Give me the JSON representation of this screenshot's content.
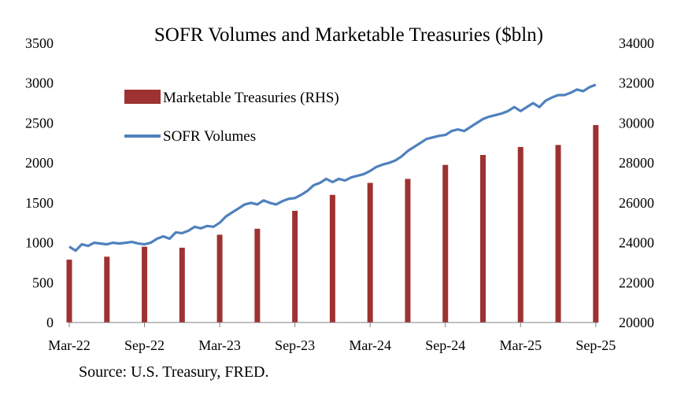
{
  "chart_data": {
    "type": "bar",
    "title": "SOFR Volumes and Marketable Treasuries ($bln)",
    "source": "Source: U.S. Treasury, FRED.",
    "x_tick_labels": [
      "Mar-22",
      "Sep-22",
      "Mar-23",
      "Sep-23",
      "Mar-24",
      "Sep-24",
      "Mar-25",
      "Sep-25"
    ],
    "x_tick_months": [
      0,
      6,
      12,
      18,
      24,
      30,
      36,
      42
    ],
    "xlim_months": [
      0,
      42.2
    ],
    "left_axis": {
      "ylim": [
        0,
        3500
      ],
      "ticks": [
        0,
        500,
        1000,
        1500,
        2000,
        2500,
        3000,
        3500
      ]
    },
    "right_axis": {
      "ylim": [
        20000,
        34000
      ],
      "ticks": [
        20000,
        22000,
        24000,
        26000,
        28000,
        30000,
        32000,
        34000
      ]
    },
    "legend": {
      "position": "top-left",
      "items": [
        {
          "name": "Marketable Treasuries (RHS)",
          "color": "#9E3232",
          "kind": "bar"
        },
        {
          "name": "SOFR Volumes",
          "color": "#4F81BD",
          "kind": "line"
        }
      ]
    },
    "series": [
      {
        "name": "Marketable Treasuries (RHS)",
        "axis": "right",
        "color": "#9E3232",
        "x_months": [
          0,
          3,
          6,
          9,
          12,
          15,
          18,
          21,
          24,
          27,
          30,
          33,
          36,
          39,
          42
        ],
        "values": [
          23150,
          23300,
          23800,
          23750,
          24400,
          24700,
          25600,
          26400,
          27000,
          27200,
          27900,
          28400,
          28800,
          28900,
          29900
        ]
      },
      {
        "name": "SOFR Volumes",
        "axis": "left",
        "color": "#4F81BD",
        "x_months": [
          0,
          0.5,
          1,
          1.5,
          2,
          2.5,
          3,
          3.5,
          4,
          4.5,
          5,
          5.5,
          6,
          6.5,
          7,
          7.5,
          8,
          8.5,
          9,
          9.5,
          10,
          10.5,
          11,
          11.5,
          12,
          12.5,
          13,
          13.5,
          14,
          14.5,
          15,
          15.5,
          16,
          16.5,
          17,
          17.5,
          18,
          18.5,
          19,
          19.5,
          20,
          20.5,
          21,
          21.5,
          22,
          22.5,
          23,
          23.5,
          24,
          24.5,
          25,
          25.5,
          26,
          26.5,
          27,
          27.5,
          28,
          28.5,
          29,
          29.5,
          30,
          30.5,
          31,
          31.5,
          32,
          32.5,
          33,
          33.5,
          34,
          34.5,
          35,
          35.5,
          36,
          36.5,
          37,
          37.5,
          38,
          38.5,
          39,
          39.5,
          40,
          40.5,
          41,
          41.5,
          42
        ],
        "values": [
          950,
          900,
          980,
          960,
          1000,
          990,
          980,
          1000,
          990,
          1000,
          1010,
          990,
          980,
          1000,
          1050,
          1080,
          1050,
          1130,
          1120,
          1150,
          1200,
          1180,
          1210,
          1200,
          1250,
          1330,
          1380,
          1430,
          1480,
          1500,
          1480,
          1530,
          1500,
          1480,
          1520,
          1550,
          1560,
          1600,
          1650,
          1720,
          1750,
          1800,
          1760,
          1800,
          1780,
          1820,
          1840,
          1860,
          1900,
          1950,
          1980,
          2000,
          2030,
          2080,
          2150,
          2200,
          2250,
          2300,
          2320,
          2340,
          2350,
          2400,
          2420,
          2400,
          2450,
          2500,
          2550,
          2580,
          2600,
          2620,
          2650,
          2700,
          2650,
          2700,
          2750,
          2700,
          2780,
          2820,
          2850,
          2850,
          2880,
          2920,
          2900,
          2950,
          2980
        ]
      }
    ]
  }
}
